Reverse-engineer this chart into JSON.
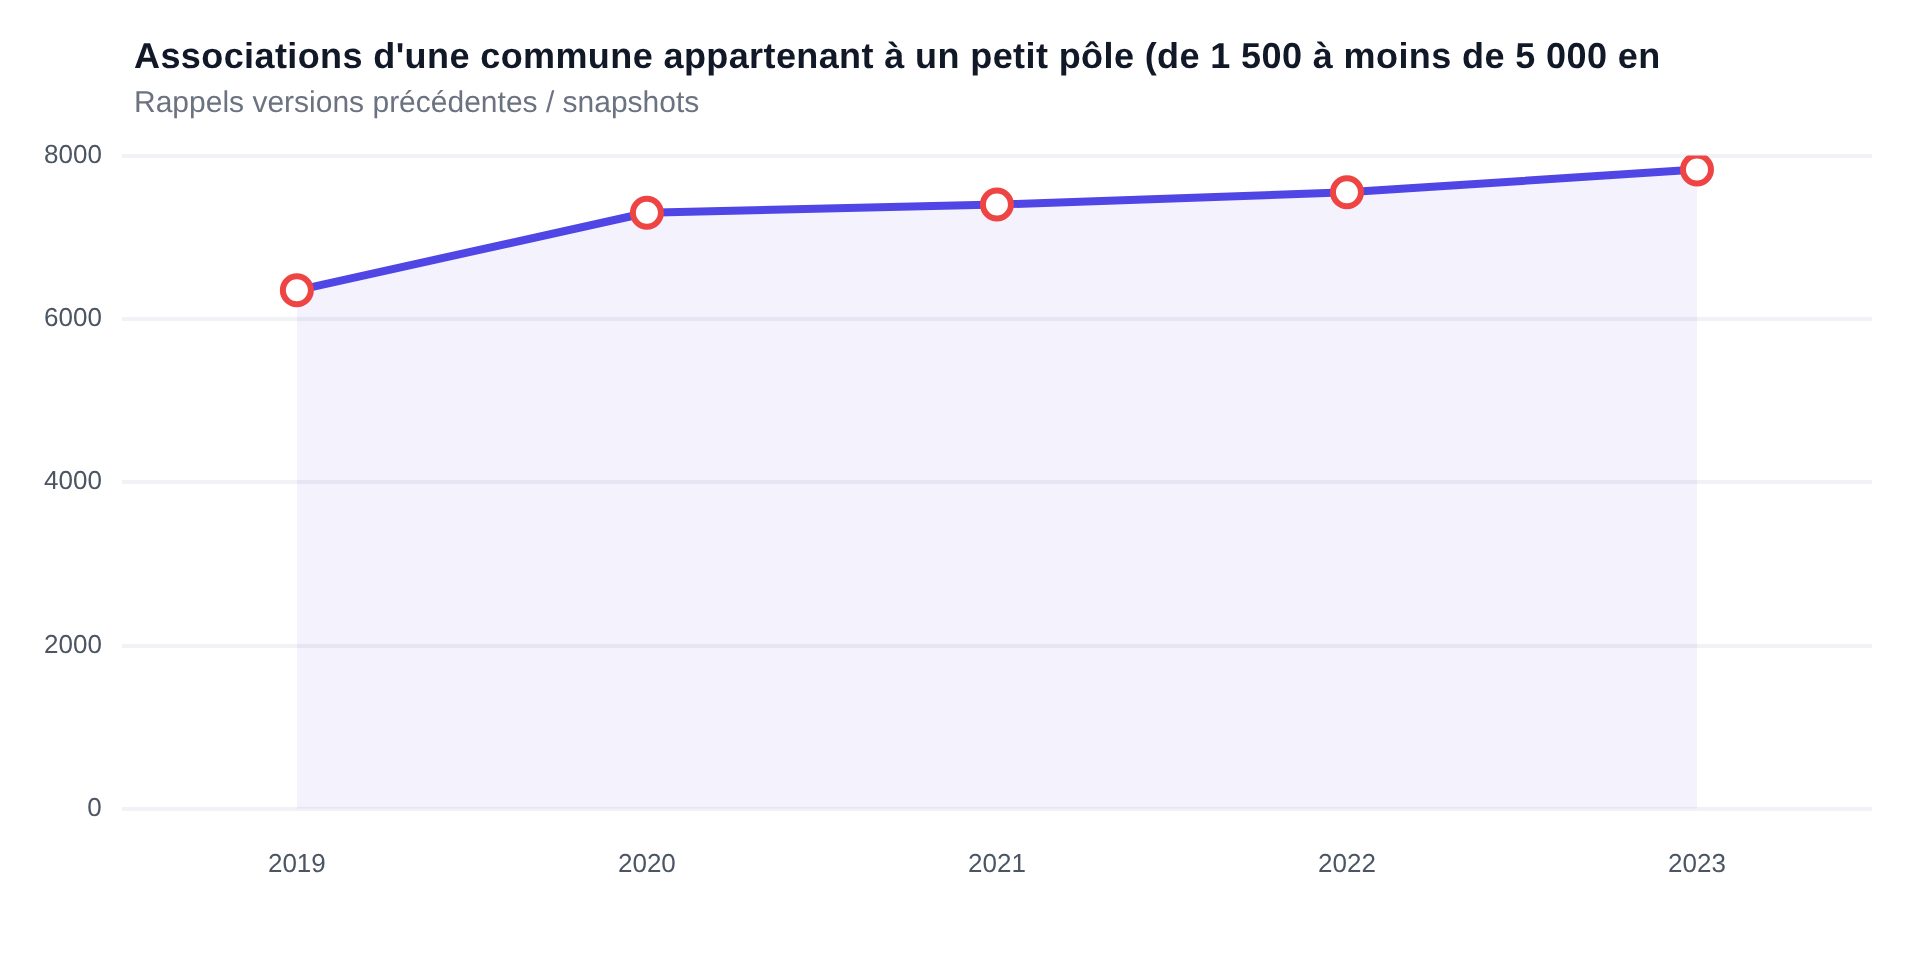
{
  "chart_data": {
    "type": "area",
    "title": "Associations d'une commune appartenant à un petit pôle (de 1 500 à moins de 5 000 en",
    "subtitle": "Rappels versions précédentes / snapshots",
    "categories": [
      "2019",
      "2020",
      "2021",
      "2022",
      "2023"
    ],
    "series": [
      {
        "color": "#4f46e5",
        "values": [
          6350,
          7300,
          7400,
          7550,
          7830
        ]
      }
    ],
    "ylim": [
      0,
      8000
    ],
    "yticks": [
      0,
      2000,
      4000,
      6000,
      8000
    ],
    "grid": "y",
    "marker": "circle",
    "legend": false
  }
}
